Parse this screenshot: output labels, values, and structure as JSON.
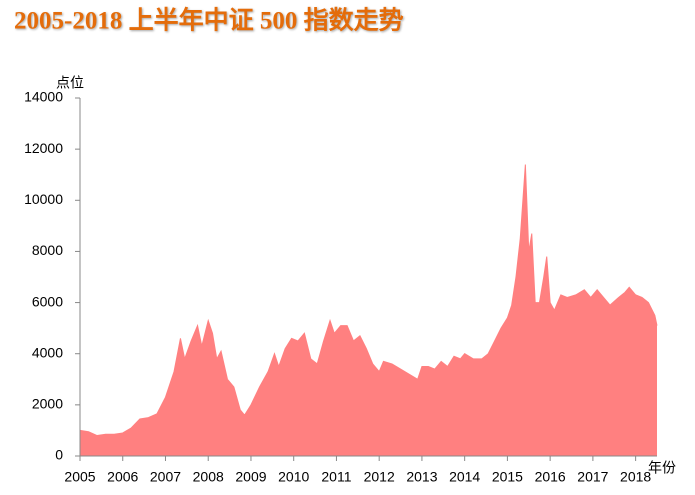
{
  "chart_data": {
    "type": "area",
    "title": "2005-2018 上半年中证 500 指数走势",
    "y_label": "点位",
    "x_label": "年份",
    "color": "#ff8080",
    "x": [
      2005.0,
      2005.2,
      2005.4,
      2005.6,
      2005.8,
      2006.0,
      2006.2,
      2006.4,
      2006.6,
      2006.8,
      2007.0,
      2007.2,
      2007.35,
      2007.45,
      2007.6,
      2007.75,
      2007.85,
      2008.0,
      2008.1,
      2008.2,
      2008.3,
      2008.45,
      2008.6,
      2008.75,
      2008.85,
      2009.0,
      2009.2,
      2009.4,
      2009.55,
      2009.65,
      2009.8,
      2009.95,
      2010.1,
      2010.25,
      2010.4,
      2010.55,
      2010.7,
      2010.85,
      2010.95,
      2011.1,
      2011.25,
      2011.4,
      2011.55,
      2011.7,
      2011.85,
      2012.0,
      2012.1,
      2012.3,
      2012.5,
      2012.7,
      2012.9,
      2013.0,
      2013.15,
      2013.3,
      2013.45,
      2013.6,
      2013.75,
      2013.9,
      2014.0,
      2014.2,
      2014.4,
      2014.55,
      2014.7,
      2014.85,
      2015.0,
      2015.1,
      2015.2,
      2015.3,
      2015.42,
      2015.5,
      2015.57,
      2015.65,
      2015.75,
      2015.85,
      2015.92,
      2016.0,
      2016.1,
      2016.25,
      2016.4,
      2016.6,
      2016.8,
      2016.95,
      2017.1,
      2017.25,
      2017.4,
      2017.6,
      2017.75,
      2017.85,
      2018.0,
      2018.15,
      2018.3,
      2018.45,
      2018.5
    ],
    "values": [
      1000,
      950,
      800,
      850,
      850,
      900,
      1100,
      1450,
      1500,
      1650,
      2300,
      3300,
      4600,
      3800,
      4500,
      5100,
      4300,
      5300,
      4800,
      3800,
      4100,
      3000,
      2700,
      1800,
      1600,
      2000,
      2700,
      3300,
      4000,
      3500,
      4200,
      4600,
      4500,
      4800,
      3800,
      3600,
      4500,
      5300,
      4800,
      5100,
      5100,
      4500,
      4700,
      4200,
      3600,
      3300,
      3700,
      3600,
      3400,
      3200,
      3000,
      3500,
      3500,
      3400,
      3700,
      3500,
      3900,
      3800,
      4000,
      3800,
      3800,
      4000,
      4500,
      5000,
      5400,
      5900,
      7000,
      8500,
      11400,
      8000,
      8700,
      6000,
      6000,
      7000,
      7800,
      6000,
      5700,
      6300,
      6200,
      6300,
      6500,
      6200,
      6500,
      6200,
      5900,
      6200,
      6400,
      6600,
      6300,
      6200,
      6000,
      5500,
      5100
    ],
    "xlim": [
      2005,
      2018.5
    ],
    "xticks": [
      2005,
      2006,
      2007,
      2008,
      2009,
      2010,
      2011,
      2012,
      2013,
      2014,
      2015,
      2016,
      2017,
      2018
    ],
    "ylim": [
      0,
      14000
    ],
    "yticks": [
      0,
      2000,
      4000,
      6000,
      8000,
      10000,
      12000,
      14000
    ]
  }
}
